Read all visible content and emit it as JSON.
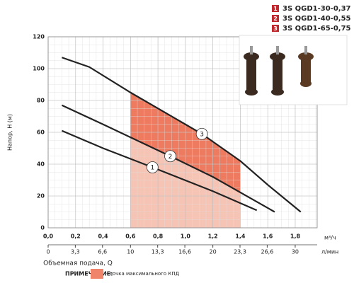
{
  "chart_data": {
    "type": "line",
    "y_label": "Напор, H (м)",
    "x_label": "Объемная подача, Q",
    "x_unit": "м³/ч",
    "x2_unit": "л/мин",
    "note_title": "ПРИМЕЧАНИЕ:",
    "note_text": "- точка максимального КПД",
    "note_color": "#f0846a",
    "efficiency_zone": [
      0.6,
      1.4
    ],
    "zone_colors": [
      "#f6c4b5",
      "#ee7a5f"
    ],
    "xlim": [
      0,
      1.96
    ],
    "ylim": [
      0,
      120
    ],
    "grid": true,
    "xticks": [
      {
        "value": 0,
        "label": "0,0"
      },
      {
        "value": 0.2,
        "label": "0,2"
      },
      {
        "value": 0.4,
        "label": "0,4"
      },
      {
        "value": 0.6,
        "label": "0,6"
      },
      {
        "value": 0.8,
        "label": "0,8"
      },
      {
        "value": 1.0,
        "label": "1,0"
      },
      {
        "value": 1.2,
        "label": "1,2"
      },
      {
        "value": 1.4,
        "label": "1,4"
      },
      {
        "value": 1.6,
        "label": "1,6"
      },
      {
        "value": 1.8,
        "label": "1,8"
      }
    ],
    "yticks": [
      0,
      20,
      40,
      60,
      80,
      100,
      120
    ],
    "x2lim": [
      0,
      32.67
    ],
    "x2ticks": [
      0,
      {
        "value": 3.3,
        "label": "3,3"
      },
      {
        "value": 6.6,
        "label": "6,6"
      },
      10,
      {
        "value": 13.3,
        "label": "13,3"
      },
      {
        "value": 16.6,
        "label": "16,6"
      },
      20,
      {
        "value": 23.3,
        "label": "23,3"
      },
      {
        "value": 26.6,
        "label": "26,6"
      },
      30
    ],
    "series": [
      {
        "name": "3S QGD1-30-0,37",
        "number": "1",
        "color": "#222222",
        "x": [
          0.1,
          0.4,
          0.76,
          1.2,
          1.52
        ],
        "values": [
          61,
          50,
          38,
          23,
          11
        ]
      },
      {
        "name": "3S QGD1-40-0,55",
        "number": "2",
        "color": "#222222",
        "x": [
          0.1,
          0.4,
          0.89,
          1.2,
          1.65
        ],
        "values": [
          77,
          65,
          45,
          32,
          10
        ]
      },
      {
        "name": "3S QGD1-65-0,75",
        "number": "3",
        "color": "#222222",
        "x": [
          0.1,
          0.3,
          0.6,
          1.12,
          1.4,
          1.6,
          1.84
        ],
        "values": [
          107,
          101,
          85,
          59,
          42,
          27,
          10
        ]
      }
    ],
    "legend_color": "#c0282d"
  }
}
